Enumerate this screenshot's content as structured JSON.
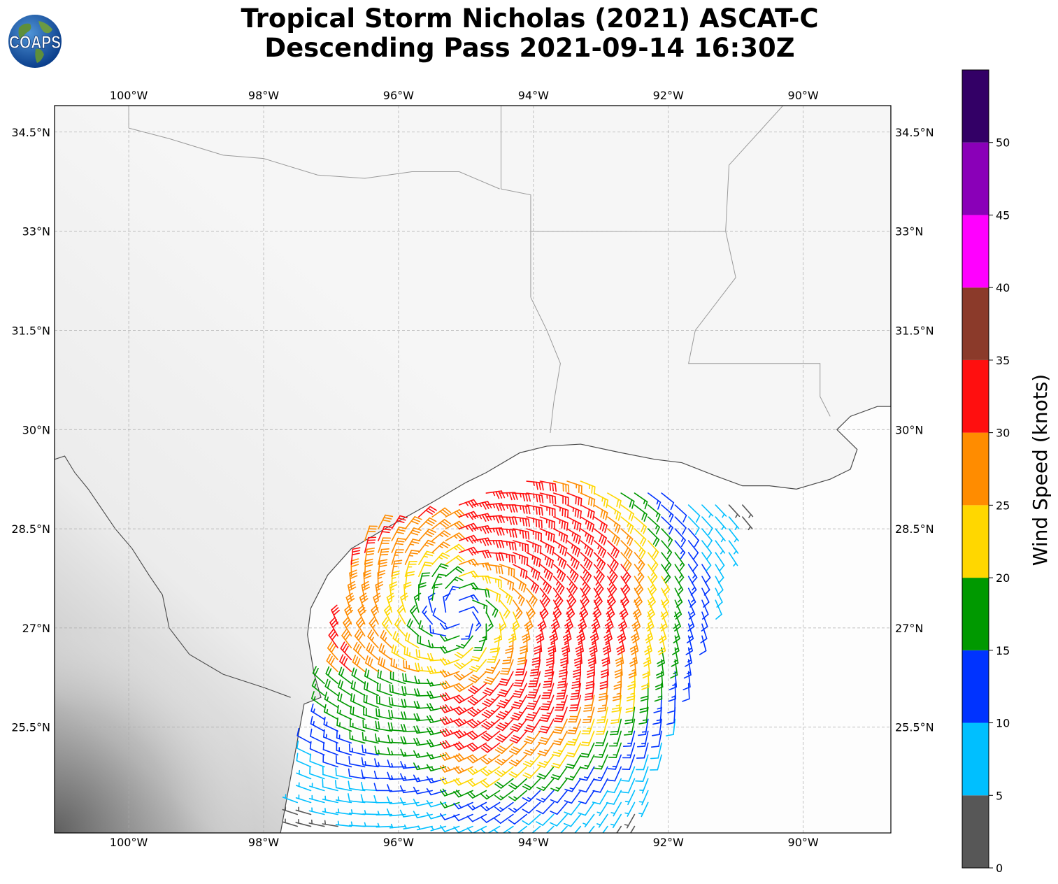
{
  "title": {
    "line1": "Tropical Storm Nicholas (2021) ASCAT-C",
    "line2": "Descending Pass 2021-09-14 16:30Z"
  },
  "logo": {
    "text": "COAPS",
    "icon": "globe-icon"
  },
  "map": {
    "lon_range": [
      -101.1,
      -88.7
    ],
    "lat_range": [
      23.9,
      34.9
    ],
    "lon_ticks": [
      {
        "value": -100,
        "label": "100°W"
      },
      {
        "value": -98,
        "label": "98°W"
      },
      {
        "value": -96,
        "label": "96°W"
      },
      {
        "value": -94,
        "label": "94°W"
      },
      {
        "value": -92,
        "label": "92°W"
      },
      {
        "value": -90,
        "label": "90°W"
      }
    ],
    "lat_ticks": [
      {
        "value": 34.5,
        "label": "34.5°N"
      },
      {
        "value": 33,
        "label": "33°N"
      },
      {
        "value": 31.5,
        "label": "31.5°N"
      },
      {
        "value": 30,
        "label": "30°N"
      },
      {
        "value": 28.5,
        "label": "28.5°N"
      },
      {
        "value": 27,
        "label": "27°N"
      },
      {
        "value": 25.5,
        "label": "25.5°N"
      }
    ],
    "land_color": "#f4f4f4",
    "gridlines": true
  },
  "colorbar": {
    "title": "Wind Speed (knots)",
    "bins": [
      {
        "min": 0,
        "max": 5,
        "color": "#575757"
      },
      {
        "min": 5,
        "max": 10,
        "color": "#00bfff"
      },
      {
        "min": 10,
        "max": 15,
        "color": "#0033ff"
      },
      {
        "min": 15,
        "max": 20,
        "color": "#009900"
      },
      {
        "min": 20,
        "max": 25,
        "color": "#ffd700"
      },
      {
        "min": 25,
        "max": 30,
        "color": "#ff8c00"
      },
      {
        "min": 30,
        "max": 35,
        "color": "#ff0f0f"
      },
      {
        "min": 35,
        "max": 40,
        "color": "#8b3a2a"
      },
      {
        "min": 40,
        "max": 45,
        "color": "#ff00ff"
      },
      {
        "min": 45,
        "max": 50,
        "color": "#8a00b8"
      },
      {
        "min": 50,
        "max": 55,
        "color": "#330066"
      }
    ],
    "tick_labels": [
      "0",
      "5",
      "10",
      "15",
      "20",
      "25",
      "30",
      "35",
      "40",
      "45",
      "50"
    ]
  },
  "wind_field": {
    "storm_center": {
      "lon": -95.1,
      "lat": 27.2
    },
    "swath_corners": {
      "top_left": {
        "lon": -96.6,
        "lat": 28.4
      },
      "top_right": {
        "lon": -93.7,
        "lat": 29.4
      },
      "bottom_left": {
        "lon": -97.6,
        "lat": 24.0
      },
      "bottom_right": {
        "lon": -92.4,
        "lat": 24.0
      }
    },
    "east_swath_top_right": {
      "lon": -90.8,
      "lat": 28.9
    },
    "max_wind_knots": 33
  }
}
